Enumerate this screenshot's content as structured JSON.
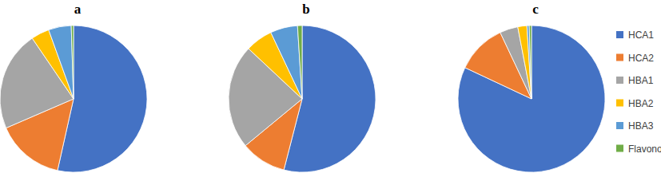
{
  "chart_data": [
    {
      "type": "pie",
      "title": "a",
      "categories": [
        "HCA1",
        "HCA2",
        "HBA1",
        "HBA2",
        "HBA3",
        "Flavonoid"
      ],
      "values": [
        53.5,
        15,
        22,
        4,
        5,
        0.5
      ],
      "colors": [
        "#4472c4",
        "#ed7d31",
        "#a5a5a5",
        "#ffc000",
        "#5b9bd5",
        "#70ad47"
      ]
    },
    {
      "type": "pie",
      "title": "b",
      "categories": [
        "HCA1",
        "HCA2",
        "HBA1",
        "HBA2",
        "HBA3",
        "Flavonoid"
      ],
      "values": [
        54,
        10,
        23,
        6,
        6,
        1
      ],
      "colors": [
        "#4472c4",
        "#ed7d31",
        "#a5a5a5",
        "#ffc000",
        "#5b9bd5",
        "#70ad47"
      ]
    },
    {
      "type": "pie",
      "title": "c",
      "categories": [
        "HCA1",
        "HCA2",
        "HBA1",
        "HBA2",
        "HBA3",
        "Flavonoid"
      ],
      "values": [
        82,
        11,
        4,
        2,
        0.5,
        0.5
      ],
      "colors": [
        "#4472c4",
        "#ed7d31",
        "#a5a5a5",
        "#ffc000",
        "#5b9bd5",
        "#70ad47"
      ],
      "legend": "right"
    }
  ]
}
